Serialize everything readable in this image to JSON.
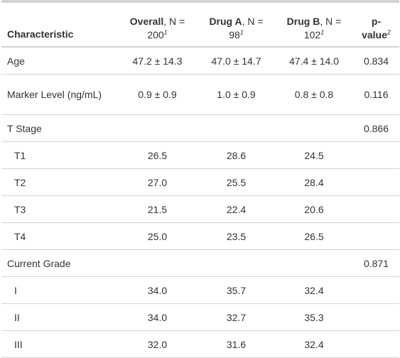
{
  "header": {
    "characteristic": "Characteristic",
    "overall_group": "Overall",
    "overall_n": ", N =",
    "overall_count": "200",
    "drug_a_group": "Drug A",
    "drug_a_n": ", N =",
    "drug_a_count": "98",
    "drug_b_group": "Drug B",
    "drug_b_n": ", N =",
    "drug_b_count": "102",
    "p_value_line1": "p-",
    "p_value_line2": "value",
    "footnote_1": "1",
    "footnote_2": "2"
  },
  "rows": [
    {
      "label": "Age",
      "overall": "47.2 ± 14.3",
      "drug_a": "47.0 ± 14.7",
      "drug_b": "47.4 ± 14.0",
      "p": "0.834"
    },
    {
      "label": "Marker Level (ng/mL)",
      "overall": "0.9 ± 0.9",
      "drug_a": "1.0 ± 0.9",
      "drug_b": "0.8 ± 0.8",
      "p": "0.116"
    },
    {
      "label": "T Stage",
      "overall": "",
      "drug_a": "",
      "drug_b": "",
      "p": "0.866"
    },
    {
      "label": "T1",
      "overall": "26.5",
      "drug_a": "28.6",
      "drug_b": "24.5",
      "p": ""
    },
    {
      "label": "T2",
      "overall": "27.0",
      "drug_a": "25.5",
      "drug_b": "28.4",
      "p": ""
    },
    {
      "label": "T3",
      "overall": "21.5",
      "drug_a": "22.4",
      "drug_b": "20.6",
      "p": ""
    },
    {
      "label": "T4",
      "overall": "25.0",
      "drug_a": "23.5",
      "drug_b": "26.5",
      "p": ""
    },
    {
      "label": "Current Grade",
      "overall": "",
      "drug_a": "",
      "drug_b": "",
      "p": "0.871"
    },
    {
      "label": "I",
      "overall": "34.0",
      "drug_a": "35.7",
      "drug_b": "32.4",
      "p": ""
    },
    {
      "label": "II",
      "overall": "34.0",
      "drug_a": "32.7",
      "drug_b": "35.3",
      "p": ""
    },
    {
      "label": "III",
      "overall": "32.0",
      "drug_a": "31.6",
      "drug_b": "32.4",
      "p": ""
    }
  ]
}
